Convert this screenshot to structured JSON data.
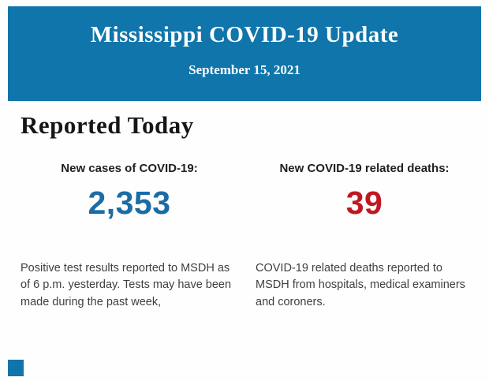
{
  "header": {
    "title": "Mississippi COVID-19 Update",
    "date": "September 15, 2021",
    "background_color": "#0f75ab",
    "text_color": "#ffffff"
  },
  "section": {
    "heading": "Reported Today"
  },
  "stats": [
    {
      "label": "New cases of COVID-19:",
      "value": "2,353",
      "value_color": "#1b6ca5",
      "description": "Positive test results reported to MSDH as of 6 p.m. yesterday. Tests may have been made during the past week,"
    },
    {
      "label": "New COVID-19 related deaths:",
      "value": "39",
      "value_color": "#c01820",
      "description": "COVID-19 related deaths reported to MSDH from hospitals, medical examiners and coroners."
    }
  ],
  "footer": {
    "accent_square_color": "#0f75ab"
  }
}
